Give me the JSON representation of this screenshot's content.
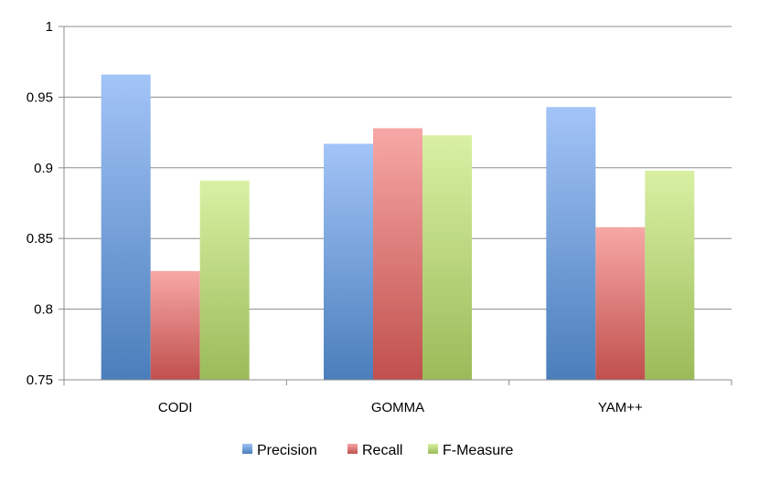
{
  "chart_data": {
    "type": "bar",
    "title": "",
    "xlabel": "",
    "ylabel": "",
    "categories": [
      "CODI",
      "GOMMA",
      "YAM++"
    ],
    "series": [
      {
        "name": "Precision",
        "values": [
          0.966,
          0.917,
          0.943
        ],
        "color": "#4a7ebb",
        "color_light": "#a3c4f7"
      },
      {
        "name": "Recall",
        "values": [
          0.827,
          0.928,
          0.858
        ],
        "color": "#c0504d",
        "color_light": "#f7a8a6"
      },
      {
        "name": "F-Measure",
        "values": [
          0.891,
          0.923,
          0.898
        ],
        "color": "#9bbb59",
        "color_light": "#d9f0a3"
      }
    ],
    "ylim": [
      0.75,
      1
    ],
    "yticks": [
      0.75,
      0.8,
      0.85,
      0.9,
      0.95,
      1
    ],
    "ytick_labels": [
      "0.75",
      "0.8",
      "0.85",
      "0.9",
      "0.95",
      "1"
    ],
    "grid": true,
    "legend_position": "bottom"
  }
}
